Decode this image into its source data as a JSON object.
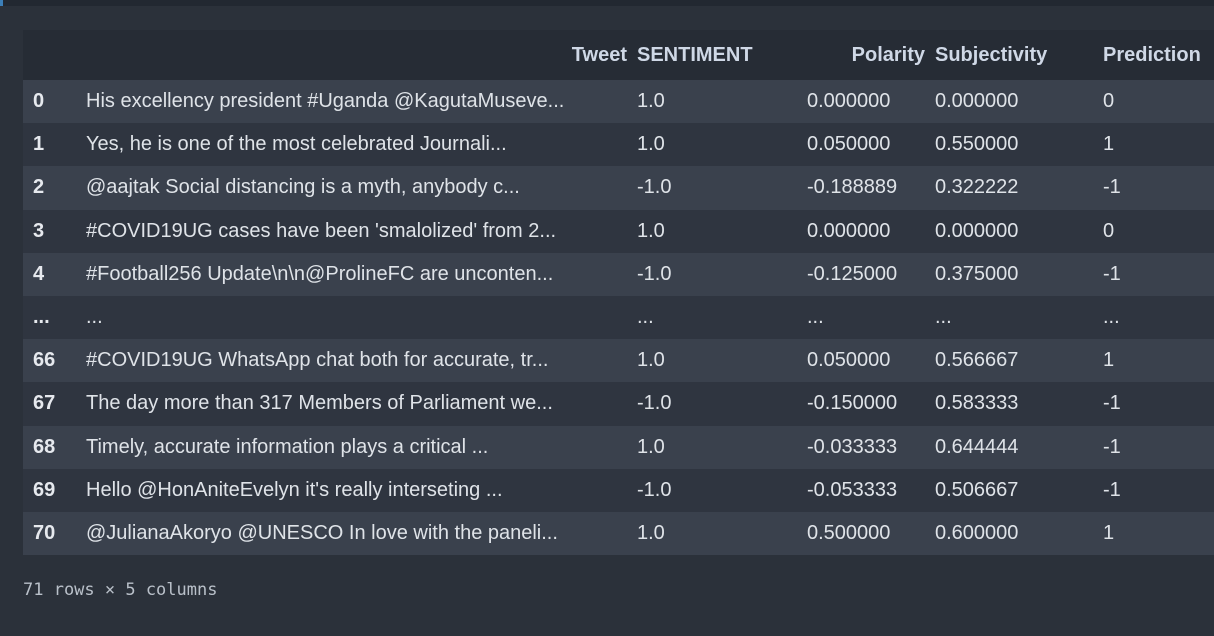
{
  "table": {
    "columns": [
      "",
      "Tweet",
      "SENTIMENT",
      "Polarity",
      "Subjectivity",
      "Prediction"
    ],
    "rows": [
      {
        "index": "0",
        "tweet": "His excellency president #Uganda @KagutaMuseve...",
        "sentiment": "1.0",
        "polarity": "0.000000",
        "subjectivity": "0.000000",
        "prediction": "0"
      },
      {
        "index": "1",
        "tweet": "Yes, he is one of the most celebrated Journali...",
        "sentiment": "1.0",
        "polarity": "0.050000",
        "subjectivity": "0.550000",
        "prediction": "1"
      },
      {
        "index": "2",
        "tweet": "@aajtak Social distancing is a myth, anybody c...",
        "sentiment": "-1.0",
        "polarity": "-0.188889",
        "subjectivity": "0.322222",
        "prediction": "-1"
      },
      {
        "index": "3",
        "tweet": "#COVID19UG cases have been 'smalolized' from 2...",
        "sentiment": "1.0",
        "polarity": "0.000000",
        "subjectivity": "0.000000",
        "prediction": "0"
      },
      {
        "index": "4",
        "tweet": "#Football256 Update\\n\\n@ProlineFC are unconten...",
        "sentiment": "-1.0",
        "polarity": "-0.125000",
        "subjectivity": "0.375000",
        "prediction": "-1"
      },
      {
        "index": "...",
        "tweet": "...",
        "sentiment": "...",
        "polarity": "...",
        "subjectivity": "...",
        "prediction": "..."
      },
      {
        "index": "66",
        "tweet": "#COVID19UG WhatsApp chat both for accurate, tr...",
        "sentiment": "1.0",
        "polarity": "0.050000",
        "subjectivity": "0.566667",
        "prediction": "1"
      },
      {
        "index": "67",
        "tweet": "The day more than 317 Members of Parliament we...",
        "sentiment": "-1.0",
        "polarity": "-0.150000",
        "subjectivity": "0.583333",
        "prediction": "-1"
      },
      {
        "index": "68",
        "tweet": "Timely, accurate information plays a critical ...",
        "sentiment": "1.0",
        "polarity": "-0.033333",
        "subjectivity": "0.644444",
        "prediction": "-1"
      },
      {
        "index": "69",
        "tweet": "Hello @HonAniteEvelyn it's really interseting ...",
        "sentiment": "-1.0",
        "polarity": "-0.053333",
        "subjectivity": "0.506667",
        "prediction": "-1"
      },
      {
        "index": "70",
        "tweet": "@JulianaAkoryo @UNESCO In love with the paneli...",
        "sentiment": "1.0",
        "polarity": "0.500000",
        "subjectivity": "0.600000",
        "prediction": "1"
      }
    ]
  },
  "footer": {
    "shape_text": "71 rows × 5 columns"
  },
  "colors": {
    "background": "#2b313a",
    "header_row": "#262c35",
    "row_odd": "#3a414d",
    "row_even": "#2f3540",
    "accent": "#3c7fb8"
  }
}
